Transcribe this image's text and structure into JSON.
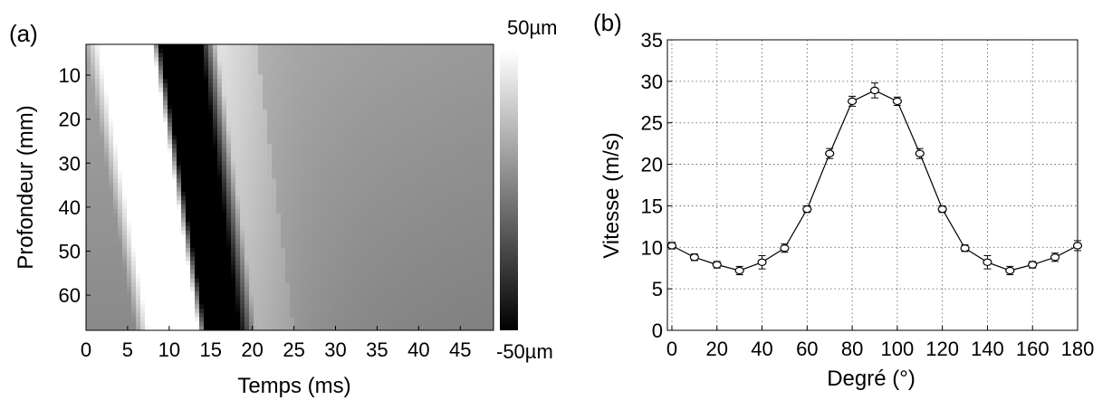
{
  "chart_data": [
    {
      "type": "heatmap",
      "panel_label": "(a)",
      "xlabel": "Temps (ms)",
      "ylabel": "Profondeur (mm)",
      "xlim": [
        0,
        49
      ],
      "ylim": [
        68,
        3
      ],
      "xticks": [
        0,
        5,
        10,
        15,
        20,
        25,
        30,
        35,
        40,
        45
      ],
      "yticks": [
        10,
        20,
        30,
        40,
        50,
        60
      ],
      "colorbar": {
        "max_label": "50µm",
        "min_label": "-50µm",
        "colormap": "gray"
      },
      "bands": {
        "white_front_start": [
          1.5,
          7.5
        ],
        "white_to_black": [
          8.0,
          13.5
        ],
        "black_end": [
          13.8,
          18.5
        ],
        "bright_recovery_end": [
          20.5,
          25.0
        ]
      }
    },
    {
      "type": "line",
      "panel_label": "(b)",
      "xlabel": "Degré (°)",
      "ylabel": "Vitesse (m/s)",
      "xlim": [
        -2,
        180
      ],
      "ylim": [
        0,
        35
      ],
      "xticks": [
        0,
        20,
        40,
        60,
        80,
        100,
        120,
        140,
        160,
        180
      ],
      "xtick_labels": [
        "0",
        "20",
        "40",
        "60",
        "80",
        "100",
        "120",
        "140",
        "160",
        "180"
      ],
      "yticks": [
        0,
        5,
        10,
        15,
        20,
        25,
        30,
        35
      ],
      "grid": true,
      "x": [
        0,
        10,
        20,
        30,
        40,
        50,
        60,
        70,
        80,
        90,
        100,
        110,
        120,
        130,
        140,
        150,
        160,
        170,
        180
      ],
      "y": [
        10.2,
        8.8,
        7.9,
        7.2,
        8.2,
        9.9,
        14.6,
        21.3,
        27.6,
        28.9,
        27.6,
        21.3,
        14.6,
        9.9,
        8.2,
        7.2,
        7.9,
        8.8,
        10.2
      ],
      "yerr": [
        0.4,
        0.4,
        0.4,
        0.5,
        0.8,
        0.5,
        0.4,
        0.6,
        0.6,
        0.9,
        0.5,
        0.6,
        0.4,
        0.4,
        0.8,
        0.5,
        0.4,
        0.5,
        0.6
      ]
    }
  ]
}
